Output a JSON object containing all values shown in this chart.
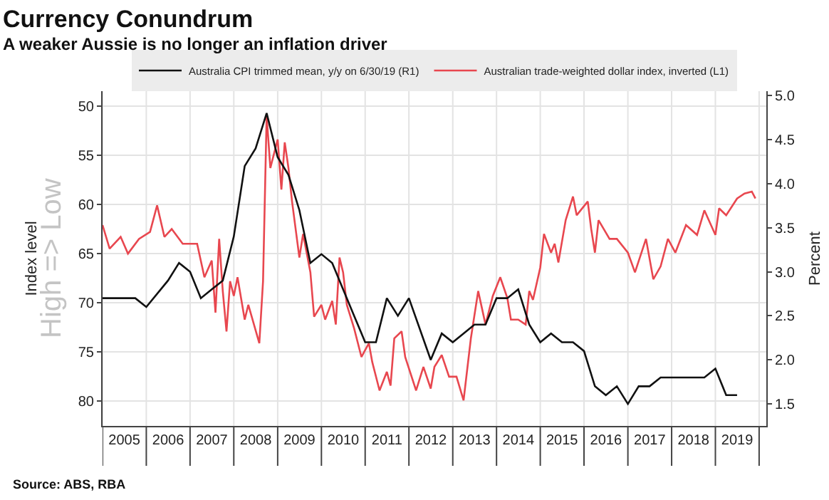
{
  "chart_data": {
    "type": "line",
    "title": "Currency Conundrum",
    "subtitle": "A weaker Aussie is no longer an inflation driver",
    "ylabel": "Index level",
    "y2label": "Percent",
    "annotations": [
      "High => Low",
      "Source: ABS, RBA"
    ],
    "xlim": [
      "2005-01-01",
      "2020-03-01"
    ],
    "xticks": [
      {
        "value": "2005-01-01",
        "label": null
      },
      {
        "value": "2005-07-02",
        "label": "2005"
      },
      {
        "value": "2006-01-01",
        "label": null
      },
      {
        "value": "2006-07-02",
        "label": "2006"
      },
      {
        "value": "2007-01-01",
        "label": null
      },
      {
        "value": "2007-07-02",
        "label": "2007"
      },
      {
        "value": "2008-01-01",
        "label": null
      },
      {
        "value": "2008-07-02",
        "label": "2008"
      },
      {
        "value": "2009-01-01",
        "label": null
      },
      {
        "value": "2009-07-02",
        "label": "2009"
      },
      {
        "value": "2010-01-01",
        "label": null
      },
      {
        "value": "2010-07-02",
        "label": "2010"
      },
      {
        "value": "2011-01-01",
        "label": null
      },
      {
        "value": "2011-07-02",
        "label": "2011"
      },
      {
        "value": "2012-01-01",
        "label": null
      },
      {
        "value": "2012-07-02",
        "label": "2012"
      },
      {
        "value": "2013-01-01",
        "label": null
      },
      {
        "value": "2013-07-02",
        "label": "2013"
      },
      {
        "value": "2014-01-01",
        "label": null
      },
      {
        "value": "2014-07-02",
        "label": "2014"
      },
      {
        "value": "2015-01-01",
        "label": null
      },
      {
        "value": "2015-07-02",
        "label": "2015"
      },
      {
        "value": "2016-01-01",
        "label": null
      },
      {
        "value": "2016-07-02",
        "label": "2016"
      },
      {
        "value": "2017-01-01",
        "label": null
      },
      {
        "value": "2017-07-02",
        "label": "2017"
      },
      {
        "value": "2018-01-01",
        "label": null
      },
      {
        "value": "2018-07-02",
        "label": "2018"
      },
      {
        "value": "2019-01-01",
        "label": null
      },
      {
        "value": "2019-07-02",
        "label": "2019"
      },
      {
        "value": "2020-01-01",
        "label": null
      }
    ],
    "ylim": [
      82.5,
      48.5
    ],
    "yticks": [
      50,
      55,
      60,
      65,
      70,
      75,
      80
    ],
    "y2lim": [
      1.25,
      5.05
    ],
    "y2ticks": [
      1.5,
      {
        "value": 2,
        "label": "2.0"
      },
      2.5,
      {
        "value": 3,
        "label": "3.0"
      },
      3.5,
      {
        "value": 4,
        "label": "4.0"
      },
      4.5,
      {
        "value": 5,
        "label": "5.0"
      }
    ],
    "grid": true,
    "legend": "top",
    "series": [
      {
        "name": "Australia CPI trimmed mean, y/y on 6/30/19 (R1)",
        "color": "#111111",
        "axis": "y2",
        "x": [
          "2005-01",
          "2005-10",
          "2006-01",
          "2006-07",
          "2006-10",
          "2007-01",
          "2007-04",
          "2007-07",
          "2007-10",
          "2008-01",
          "2008-04",
          "2008-07",
          "2008-10",
          "2009-01",
          "2009-04",
          "2009-07",
          "2009-10",
          "2010-01",
          "2010-04",
          "2010-07",
          "2010-10",
          "2011-01",
          "2011-04",
          "2011-07",
          "2011-10",
          "2012-01",
          "2012-07",
          "2012-10",
          "2013-01",
          "2013-04",
          "2013-07",
          "2013-10",
          "2014-01",
          "2014-04",
          "2014-07",
          "2014-10",
          "2015-01",
          "2015-04",
          "2015-07",
          "2015-10",
          "2016-01",
          "2016-04",
          "2016-07",
          "2016-10",
          "2017-01",
          "2017-04",
          "2017-07",
          "2017-10",
          "2018-01",
          "2018-04",
          "2018-07",
          "2018-10",
          "2019-01",
          "2019-04",
          "2019-07"
        ],
        "values": [
          2.7,
          2.7,
          2.6,
          2.9,
          3.1,
          3.0,
          2.7,
          2.8,
          2.9,
          3.4,
          4.2,
          4.4,
          4.8,
          4.3,
          4.1,
          3.7,
          3.1,
          3.2,
          3.1,
          2.8,
          2.5,
          2.2,
          2.2,
          2.7,
          2.5,
          2.7,
          2.0,
          2.3,
          2.2,
          2.3,
          2.4,
          2.4,
          2.7,
          2.7,
          2.8,
          2.4,
          2.2,
          2.3,
          2.2,
          2.2,
          2.1,
          1.7,
          1.6,
          1.7,
          1.5,
          1.7,
          1.7,
          1.8,
          1.8,
          1.8,
          1.8,
          1.8,
          1.9,
          1.6,
          1.6
        ]
      },
      {
        "name": "Australian trade-weighted dollar index, inverted (L1)",
        "color": "#e8474f",
        "x": [
          "2005-01",
          "2005-03",
          "2005-06",
          "2005-08",
          "2005-11",
          "2006-02",
          "2006-04",
          "2006-06",
          "2006-08",
          "2006-11",
          "2007-03",
          "2007-05",
          "2007-07",
          "2007-08",
          "2007-09",
          "2007-10",
          "2007-11",
          "2007-12",
          "2008-01",
          "2008-02",
          "2008-04",
          "2008-05",
          "2008-08",
          "2008-09",
          "2008-10",
          "2008-11",
          "2009-01",
          "2009-02",
          "2009-03",
          "2009-04",
          "2009-05",
          "2009-07",
          "2009-08",
          "2009-10",
          "2009-11",
          "2010-01",
          "2010-02",
          "2010-04",
          "2010-05",
          "2010-06",
          "2010-07",
          "2010-08",
          "2010-10",
          "2010-12",
          "2011-02",
          "2011-03",
          "2011-05",
          "2011-07",
          "2011-08",
          "2011-09",
          "2011-11",
          "2011-12",
          "2012-03",
          "2012-05",
          "2012-07",
          "2012-08",
          "2012-10",
          "2012-12",
          "2013-02",
          "2013-04",
          "2013-06",
          "2013-08",
          "2013-10",
          "2013-12",
          "2014-02",
          "2014-04",
          "2014-05",
          "2014-07",
          "2014-09",
          "2014-10",
          "2014-11",
          "2015-01",
          "2015-02",
          "2015-04",
          "2015-05",
          "2015-06",
          "2015-08",
          "2015-10",
          "2015-11",
          "2016-02",
          "2016-03",
          "2016-04",
          "2016-05",
          "2016-08",
          "2016-10",
          "2017-01",
          "2017-03",
          "2017-06",
          "2017-08",
          "2017-10",
          "2017-12",
          "2018-02",
          "2018-05",
          "2018-08",
          "2018-10",
          "2019-01",
          "2019-02",
          "2019-04",
          "2019-07",
          "2019-09",
          "2019-11",
          "2019-12"
        ],
        "values": [
          62.1,
          64.5,
          63.3,
          65.0,
          63.5,
          62.8,
          60.1,
          63.3,
          62.5,
          64.0,
          64.0,
          67.4,
          65.7,
          71.0,
          63.5,
          68.8,
          72.9,
          67.8,
          69.3,
          67.4,
          71.7,
          70.2,
          74.1,
          67.8,
          51.0,
          56.3,
          53.4,
          58.5,
          53.7,
          56.3,
          59.7,
          65.4,
          63.0,
          66.9,
          71.4,
          70.2,
          71.7,
          69.8,
          72.2,
          65.4,
          66.9,
          70.2,
          72.6,
          75.5,
          74.1,
          76.0,
          78.9,
          77.0,
          78.4,
          73.6,
          72.9,
          75.5,
          78.9,
          76.5,
          78.7,
          76.5,
          75.3,
          77.5,
          77.5,
          79.9,
          73.6,
          68.8,
          72.2,
          69.3,
          67.4,
          69.5,
          71.7,
          71.7,
          72.2,
          68.8,
          69.7,
          66.4,
          63.0,
          64.9,
          64.0,
          65.9,
          61.6,
          59.2,
          61.1,
          59.7,
          62.5,
          64.9,
          61.6,
          63.5,
          63.5,
          64.9,
          66.9,
          63.5,
          67.6,
          66.3,
          63.5,
          64.9,
          62.1,
          63.1,
          60.6,
          63.1,
          60.4,
          61.1,
          59.4,
          58.9,
          58.7,
          59.4
        ]
      }
    ]
  }
}
